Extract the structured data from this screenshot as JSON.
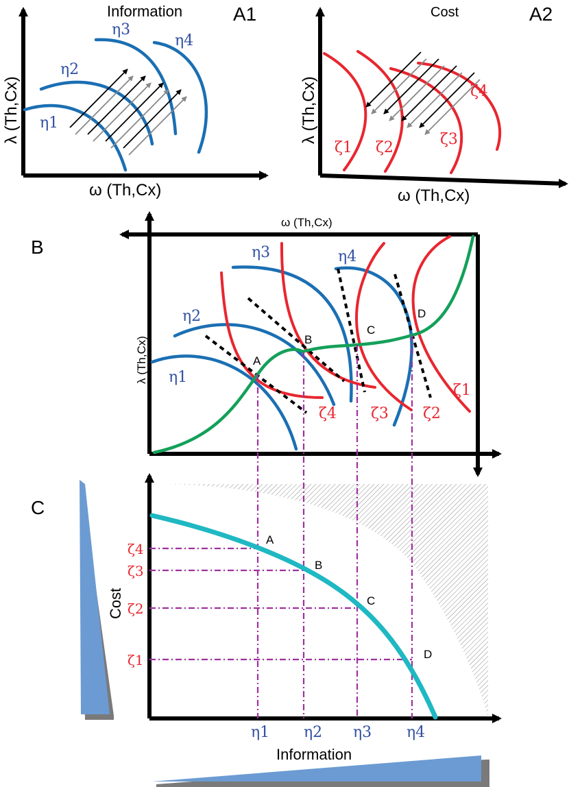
{
  "panelA1": {
    "label": "A1",
    "title": "Information",
    "xlabel": "ω (Th,Cx)",
    "ylabel": "λ (Th,Cx)",
    "curves": [
      "η1",
      "η2",
      "η3",
      "η4"
    ]
  },
  "panelA2": {
    "label": "A2",
    "title": "Cost",
    "xlabel": "ω (Th,Cx)",
    "ylabel": "λ (Th,Cx)",
    "curves": [
      "ζ1",
      "ζ2",
      "ζ3",
      "ζ4"
    ]
  },
  "panelB": {
    "label": "B",
    "xlabel": "ω (Th,Cx)",
    "ylabel": "λ (Th,Cx)",
    "blue_curves": [
      "η1",
      "η2",
      "η3",
      "η4"
    ],
    "red_curves": [
      "ζ4",
      "ζ3",
      "ζ2",
      "ζ1"
    ],
    "points": [
      "A",
      "B",
      "C",
      "D"
    ]
  },
  "panelC": {
    "label": "C",
    "xlabel": "Information",
    "ylabel": "Cost",
    "x_ticks": [
      "η1",
      "η2",
      "η3",
      "η4"
    ],
    "y_ticks": [
      "ζ4",
      "ζ3",
      "ζ2",
      "ζ1"
    ],
    "points": [
      "A",
      "B",
      "C",
      "D"
    ]
  },
  "colors": {
    "information_curves": "#1b6fb3",
    "cost_curves": "#e8262f",
    "optimal_path": "#14a05a",
    "pareto_front": "#1fb8c3",
    "projection_lines": "#a0309e",
    "gradient_wedges": "#6b9bd2"
  }
}
